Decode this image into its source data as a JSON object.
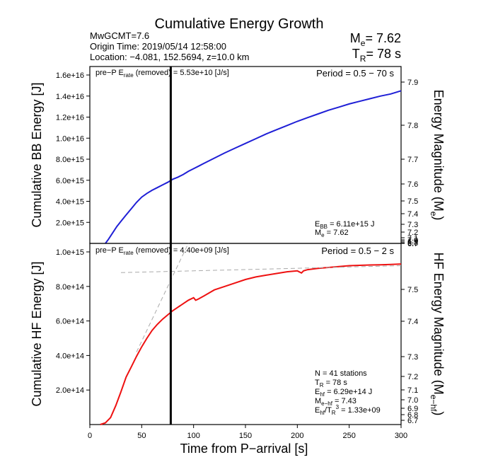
{
  "header": {
    "title": "Cumulative Energy Growth",
    "event_name": "MwGCMT=7.6",
    "origin_time": "Origin Time: 2019/05/14 12:58:00",
    "location": "Location: −4.081, 152.5694, z=10.0 km",
    "me_prefix": "M",
    "me_sub": "e",
    "me_value": "= 7.62",
    "tr_prefix": "T",
    "tr_sub": "R",
    "tr_value": "= 78 s"
  },
  "x_axis": {
    "label": "Time from P−arrival [s]",
    "ticks": [
      "0",
      "50",
      "100",
      "150",
      "200",
      "250",
      "300"
    ]
  },
  "colors": {
    "bb": "#1f1fd6",
    "hf": "#ee1111",
    "fit": "#aaaaaa",
    "marker": "#000000"
  },
  "chart_data": [
    {
      "type": "line",
      "title": "",
      "xlabel": "",
      "ylabel": "Cumulative BB Energy [J]",
      "y2label_main": "Energy Magnitude (M",
      "y2label_sub": "e",
      "y2label_end": ")",
      "xlim": [
        0,
        300
      ],
      "ylim": [
        0,
        1.6e+16
      ],
      "yticks": [
        "1.6e+16",
        "1.4e+16",
        "1.2e+16",
        "1.0e+16",
        "8.0e+15",
        "6.0e+15",
        "4.0e+15",
        "2.0e+15"
      ],
      "y2ticks": [
        "7.9",
        "7.8",
        "7.7",
        "7.6",
        "7.5",
        "7.4",
        "7.3",
        "7.2",
        "7.1",
        "7.0",
        "6.9",
        "6.8",
        "6.7"
      ],
      "prep_prefix": "pre−P E",
      "prep_sub": "rate",
      "prep_value": " (removed) = 5.53e+10 [J/s]",
      "period": "Period = 0.5 − 70 s",
      "ann_e_prefix": "E",
      "ann_e_sub": "BB",
      "ann_e_value": " = 6.11e+15 J",
      "ann_m_prefix": "M",
      "ann_m_sub": "e",
      "ann_m_value": " = 7.62",
      "marker_x": 78,
      "series": [
        {
          "x": [
            15,
            18,
            22,
            26,
            30,
            35,
            40,
            45,
            50,
            55,
            60,
            65,
            70,
            75,
            80,
            85,
            90,
            95,
            100,
            105,
            110,
            120,
            130,
            140,
            150,
            160,
            170,
            180,
            190,
            200,
            210,
            220,
            230,
            240,
            250,
            260,
            270,
            280,
            290,
            300
          ],
          "y": [
            0,
            400000000000000.0,
            1000000000000000.0,
            1600000000000000.0,
            2100000000000000.0,
            2700000000000000.0,
            3300000000000000.0,
            3900000000000000.0,
            4400000000000000.0,
            4750000000000000.0,
            5050000000000000.0,
            5300000000000000.0,
            5550000000000000.0,
            5800000000000000.0,
            6100000000000000.0,
            6300000000000000.0,
            6550000000000000.0,
            6850000000000000.0,
            7100000000000000.0,
            7350000000000000.0,
            7600000000000000.0,
            8100000000000000.0,
            8600000000000000.0,
            9050000000000000.0,
            9500000000000000.0,
            9950000000000000.0,
            1.04e+16,
            1.08e+16,
            1.12e+16,
            1.16e+16,
            1.195e+16,
            1.23e+16,
            1.265e+16,
            1.295e+16,
            1.325e+16,
            1.35e+16,
            1.375e+16,
            1.4e+16,
            1.42e+16,
            1.45e+16
          ]
        }
      ]
    },
    {
      "type": "line",
      "title": "",
      "xlabel": "",
      "ylabel": "Cumulative HF Energy [J]",
      "y2label_main": "HF Energy Magnitude (M",
      "y2label_sub": "e−hf",
      "y2label_end": ")",
      "xlim": [
        0,
        300
      ],
      "ylim": [
        0,
        1000000000000000.0
      ],
      "yticks": [
        "1.0e+15",
        "8.0e+14",
        "6.0e+14",
        "4.0e+14",
        "2.0e+14"
      ],
      "y2ticks": [
        "7.5",
        "7.4",
        "7.3",
        "7.2",
        "7.1",
        "7.0",
        "6.9",
        "6.8",
        "6.7"
      ],
      "prep_prefix": "pre−P E",
      "prep_sub": "rate",
      "prep_value": " (removed) = 4.40e+09 [J/s]",
      "period": "Period = 0.5 − 2 s",
      "stats_n": "N = 41 stations",
      "stats_tr_prefix": "T",
      "stats_tr_sub": "R",
      "stats_tr_value": " = 78  s",
      "stats_e_prefix": "E",
      "stats_e_sub": "hf",
      "stats_e_value": " = 6.29e+14 J",
      "stats_m_prefix": "M",
      "stats_m_sub": "e−hf",
      "stats_m_value": " = 7.43",
      "stats_r_prefix": "E",
      "stats_r_sub1": "hf",
      "stats_r_mid": "/T",
      "stats_r_sub2": "R",
      "stats_r_sup": "3",
      "stats_r_value": " =  1.33e+09",
      "marker_x": 78,
      "series": [
        {
          "x": [
            10,
            15,
            20,
            25,
            30,
            35,
            40,
            45,
            50,
            55,
            60,
            65,
            70,
            75,
            80,
            85,
            90,
            95,
            100,
            102,
            104,
            110,
            120,
            130,
            140,
            150,
            160,
            170,
            180,
            190,
            200,
            204,
            206,
            210,
            220,
            230,
            240,
            250,
            260,
            270,
            280,
            290,
            300
          ],
          "y": [
            0,
            10000000000000.0,
            40000000000000.0,
            110000000000000.0,
            190000000000000.0,
            275000000000000.0,
            335000000000000.0,
            395000000000000.0,
            450000000000000.0,
            500000000000000.0,
            545000000000000.0,
            580000000000000.0,
            610000000000000.0,
            635000000000000.0,
            660000000000000.0,
            680000000000000.0,
            700000000000000.0,
            720000000000000.0,
            735000000000000.0,
            720000000000000.0,
            725000000000000.0,
            745000000000000.0,
            780000000000000.0,
            800000000000000.0,
            820000000000000.0,
            840000000000000.0,
            855000000000000.0,
            865000000000000.0,
            875000000000000.0,
            885000000000000.0,
            890000000000000.0,
            878000000000000.0,
            890000000000000.0,
            897000000000000.0,
            905000000000000.0,
            910000000000000.0,
            915000000000000.0,
            920000000000000.0,
            922000000000000.0,
            924000000000000.0,
            925000000000000.0,
            927000000000000.0,
            930000000000000.0
          ]
        },
        {
          "name": "",
          "dashed": true,
          "x": [
            30,
            300
          ],
          "y": [
            880000000000000.0,
            920000000000000.0
          ]
        },
        {
          "name": "",
          "dashed": true,
          "x": [
            45,
            95
          ],
          "y": [
            420000000000000.0,
            1050000000000000.0
          ]
        }
      ]
    }
  ]
}
